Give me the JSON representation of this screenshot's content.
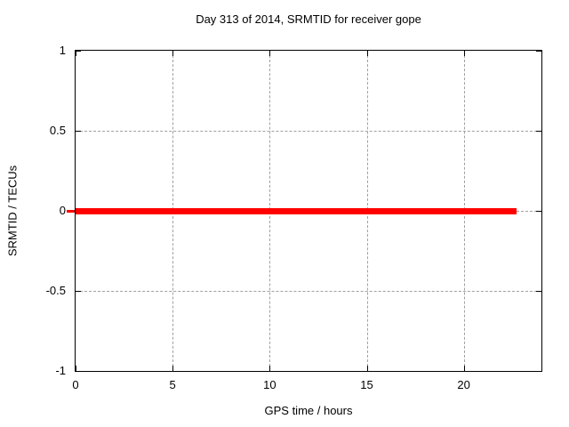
{
  "chart_data": {
    "type": "line",
    "title": "Day 313 of 2014, SRMTID for receiver gope",
    "xlabel": "GPS time / hours",
    "ylabel": "SRMTID / TECUs",
    "xlim": [
      0,
      24
    ],
    "ylim": [
      -1,
      1
    ],
    "x_ticks": [
      0,
      5,
      10,
      15,
      20
    ],
    "y_ticks": [
      1,
      0.5,
      0,
      -0.5,
      -1
    ],
    "grid": true,
    "legend": "none",
    "series": [
      {
        "name": "SRMTID",
        "color": "#ff0000",
        "y_value": 0,
        "x_start": 0,
        "x_end": 22.7,
        "thickness_px": 7
      }
    ]
  },
  "colors": {
    "background": "#ffffff",
    "axis": "#000000",
    "grid": "#a0a0a0",
    "text": "#000000"
  }
}
